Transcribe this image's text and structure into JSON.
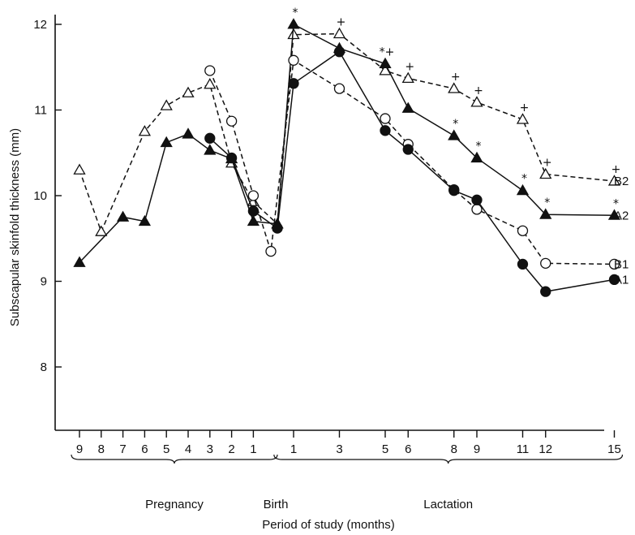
{
  "chart_data": {
    "type": "line",
    "xlabel": "Period of study (months)",
    "ylabel": "Subscapular skinfold thickness (mm)",
    "ylim": [
      7,
      12
    ],
    "y_ticks": [
      "8",
      "9",
      "10",
      "11",
      "12"
    ],
    "x_ticks": [
      {
        "label": "9",
        "x": -9
      },
      {
        "label": "8",
        "x": -8
      },
      {
        "label": "7",
        "x": -7
      },
      {
        "label": "6",
        "x": -6
      },
      {
        "label": "5",
        "x": -5
      },
      {
        "label": "4",
        "x": -4
      },
      {
        "label": "3",
        "x": -3
      },
      {
        "label": "2",
        "x": -2
      },
      {
        "label": "1",
        "x": -1
      },
      {
        "label": "1",
        "x": 1
      },
      {
        "label": "3",
        "x": 3
      },
      {
        "label": "5",
        "x": 5
      },
      {
        "label": "6",
        "x": 6
      },
      {
        "label": "8",
        "x": 8
      },
      {
        "label": "9",
        "x": 9
      },
      {
        "label": "11",
        "x": 11
      },
      {
        "label": "12",
        "x": 12
      },
      {
        "label": "15",
        "x": 15
      }
    ],
    "periods": [
      {
        "label": "Pregnancy",
        "from": -9,
        "to": -0.5
      },
      {
        "label": "Birth",
        "from": -0.5,
        "to": 0.5
      },
      {
        "label": "Lactation",
        "from": 0.5,
        "to": 15
      }
    ],
    "series": [
      {
        "name": "B2",
        "marker": "triangle-open",
        "dash": "dashed",
        "points": [
          {
            "x": -9,
            "y": 10.3
          },
          {
            "x": -8,
            "y": 9.58
          },
          {
            "x": -6,
            "y": 10.75
          },
          {
            "x": -5,
            "y": 11.05
          },
          {
            "x": -4,
            "y": 11.2
          },
          {
            "x": -3,
            "y": 11.3
          },
          {
            "x": -2,
            "y": 10.38
          },
          {
            "x": -1,
            "y": 9.93
          },
          {
            "x": 0,
            "y": 9.67
          },
          {
            "x": 1,
            "y": 11.88
          },
          {
            "x": 3,
            "y": 11.89
          },
          {
            "x": 5,
            "y": 11.46
          },
          {
            "x": 6,
            "y": 11.37
          },
          {
            "x": 8,
            "y": 11.25
          },
          {
            "x": 9,
            "y": 11.09
          },
          {
            "x": 11,
            "y": 10.89
          },
          {
            "x": 12,
            "y": 10.25
          },
          {
            "x": 15,
            "y": 10.17
          }
        ]
      },
      {
        "name": "A2",
        "marker": "triangle-filled",
        "dash": "solid",
        "points": [
          {
            "x": -9,
            "y": 9.22
          },
          {
            "x": -7,
            "y": 9.75
          },
          {
            "x": -6,
            "y": 9.7
          },
          {
            "x": -5,
            "y": 10.62
          },
          {
            "x": -4,
            "y": 10.72
          },
          {
            "x": -3,
            "y": 10.53
          },
          {
            "x": -2,
            "y": 10.43
          },
          {
            "x": -1,
            "y": 9.7
          },
          {
            "x": 0,
            "y": 9.67
          },
          {
            "x": 1,
            "y": 12.0
          },
          {
            "x": 3,
            "y": 11.72
          },
          {
            "x": 5,
            "y": 11.54
          },
          {
            "x": 6,
            "y": 11.02
          },
          {
            "x": 8,
            "y": 10.7
          },
          {
            "x": 9,
            "y": 10.44
          },
          {
            "x": 11,
            "y": 10.06
          },
          {
            "x": 12,
            "y": 9.78
          },
          {
            "x": 15,
            "y": 9.77
          }
        ]
      },
      {
        "name": "B1",
        "marker": "circle-open",
        "dash": "dashed",
        "points": [
          {
            "x": -3,
            "y": 11.46
          },
          {
            "x": -2,
            "y": 10.87
          },
          {
            "x": -1,
            "y": 10.0
          },
          {
            "x": -0.4,
            "y": 9.35
          },
          {
            "x": 1,
            "y": 11.58
          },
          {
            "x": 3,
            "y": 11.25
          },
          {
            "x": 5,
            "y": 10.9
          },
          {
            "x": 6,
            "y": 10.6
          },
          {
            "x": 8,
            "y": 10.07
          },
          {
            "x": 9,
            "y": 9.84
          },
          {
            "x": 11,
            "y": 9.59
          },
          {
            "x": 12,
            "y": 9.21
          },
          {
            "x": 15,
            "y": 9.2
          }
        ]
      },
      {
        "name": "A1",
        "marker": "circle-filled",
        "dash": "solid",
        "points": [
          {
            "x": -3,
            "y": 10.67
          },
          {
            "x": -2,
            "y": 10.44
          },
          {
            "x": -1,
            "y": 9.82
          },
          {
            "x": 0,
            "y": 9.62
          },
          {
            "x": 1,
            "y": 11.31
          },
          {
            "x": 3,
            "y": 11.68
          },
          {
            "x": 5,
            "y": 10.76
          },
          {
            "x": 6,
            "y": 10.54
          },
          {
            "x": 8,
            "y": 10.06
          },
          {
            "x": 9,
            "y": 9.95
          },
          {
            "x": 11,
            "y": 9.2
          },
          {
            "x": 12,
            "y": 8.88
          },
          {
            "x": 15,
            "y": 9.02
          }
        ]
      }
    ],
    "annotations": [
      {
        "text": "*",
        "x": 1,
        "y": 12.0
      },
      {
        "text": "+",
        "x": 3,
        "y": 11.89
      },
      {
        "text": "*+",
        "x": 5,
        "y": 11.54
      },
      {
        "text": "+",
        "x": 6,
        "y": 11.37
      },
      {
        "text": "+",
        "x": 8,
        "y": 11.25
      },
      {
        "text": "*",
        "x": 8,
        "y": 10.7
      },
      {
        "text": "+",
        "x": 9,
        "y": 11.09
      },
      {
        "text": "*",
        "x": 9,
        "y": 10.44
      },
      {
        "text": "+",
        "x": 11,
        "y": 10.89
      },
      {
        "text": "*",
        "x": 11,
        "y": 10.06
      },
      {
        "text": "+",
        "x": 12,
        "y": 10.25
      },
      {
        "text": "*",
        "x": 12,
        "y": 9.78
      },
      {
        "text": "+",
        "x": 15,
        "y": 10.17
      },
      {
        "text": "*",
        "x": 15,
        "y": 9.77
      }
    ],
    "grid": false,
    "legend": "right-end-labels"
  }
}
